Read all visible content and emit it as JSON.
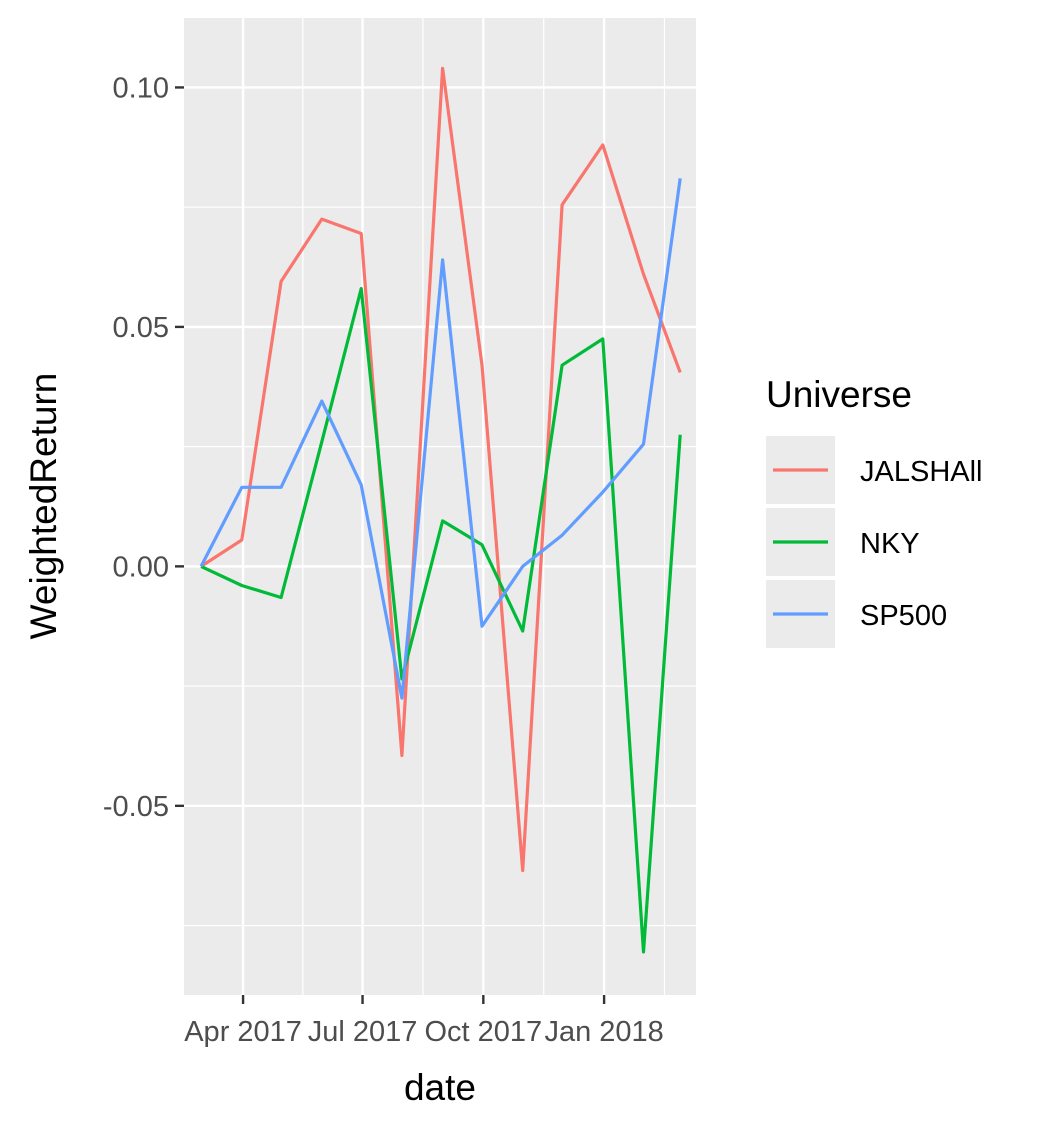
{
  "chart_data": {
    "type": "line",
    "xlabel": "date",
    "ylabel": "WeightedReturn",
    "x": [
      "2017-02-28",
      "2017-03-31",
      "2017-04-30",
      "2017-05-31",
      "2017-06-30",
      "2017-07-31",
      "2017-08-31",
      "2017-09-30",
      "2017-10-31",
      "2017-11-30",
      "2017-12-31",
      "2018-01-31",
      "2018-02-28"
    ],
    "xticks": [
      {
        "date": "2017-04-01",
        "label": "Apr 2017"
      },
      {
        "date": "2017-07-01",
        "label": "Jul 2017"
      },
      {
        "date": "2017-10-01",
        "label": "Oct 2017"
      },
      {
        "date": "2018-01-01",
        "label": "Jan 2018"
      }
    ],
    "xlim": [
      "2017-02-15",
      "2018-03-12"
    ],
    "yticks": [
      {
        "value": -0.05,
        "label": "-0.05"
      },
      {
        "value": 0,
        "label": "0.00"
      },
      {
        "value": 0.05,
        "label": "0.05"
      },
      {
        "value": 0.1,
        "label": "0.10"
      }
    ],
    "ylim": [
      -0.0895,
      0.1145
    ],
    "grid": true,
    "legend": {
      "title": "Universe",
      "position": "right"
    },
    "series": [
      {
        "name": "JALSHAll",
        "color": "#F8766D",
        "values": [
          0.0,
          0.0055,
          0.0595,
          0.0725,
          0.0695,
          -0.0395,
          0.104,
          0.042,
          -0.0635,
          0.0755,
          0.088,
          0.061,
          0.0405
        ]
      },
      {
        "name": "NKY",
        "color": "#00BA38",
        "values": [
          0.0,
          -0.004,
          -0.0065,
          0.026,
          0.058,
          -0.0235,
          0.0095,
          0.0045,
          -0.0135,
          0.042,
          0.0475,
          -0.0805,
          0.0275
        ]
      },
      {
        "name": "SP500",
        "color": "#619CFF",
        "values": [
          0.0,
          0.0165,
          0.0165,
          0.0345,
          0.017,
          -0.0275,
          0.064,
          -0.0125,
          0.0,
          0.0065,
          0.0155,
          0.0255,
          0.081
        ]
      }
    ]
  }
}
